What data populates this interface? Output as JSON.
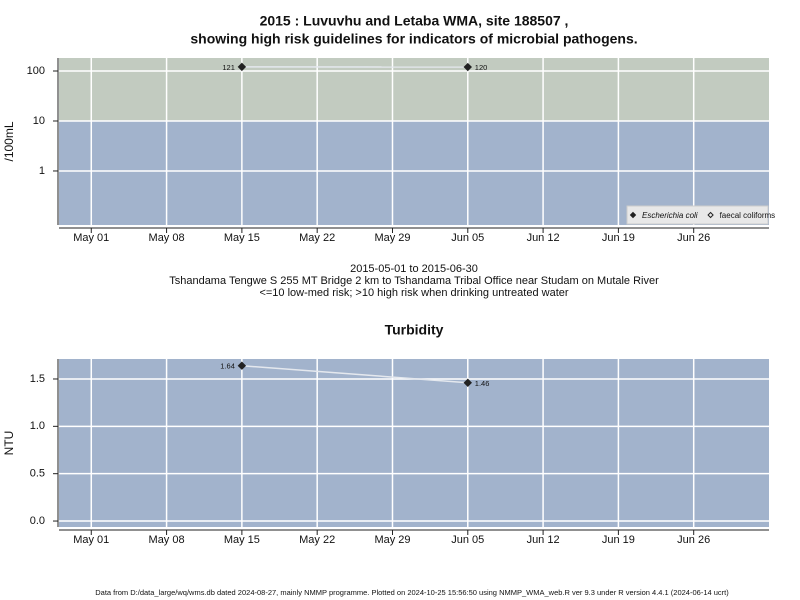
{
  "chart_data": [
    {
      "type": "line",
      "title": [
        "2015 : Luvuvhu and Letaba WMA, site 188507 ,",
        "showing high risk guidelines for indicators of microbial pathogens."
      ],
      "ylabel": "/100mL",
      "caption": [
        "2015-05-01 to 2015-06-30",
        "Tshandama Tengwe S 255 MT Bridge 2 km to Tshandama Tribal Office near Studam on Mutale River",
        "<=10 low-med risk; >10 high risk when drinking untreated water"
      ],
      "x": [
        "2015-05-15",
        "2015-06-05"
      ],
      "series": [
        {
          "name": "Escherichia coli",
          "color": "#222222",
          "line_color": "#e4e8ee",
          "marker": "filled",
          "font_style": "italic",
          "values": [
            121,
            120
          ]
        },
        {
          "name": "faecal coliforms",
          "color": "#222222",
          "line_color": "#e4e8ee",
          "marker": "open",
          "font_style": "normal",
          "values": [
            null,
            null
          ]
        }
      ],
      "xlim": [
        "2015-04-28",
        "2015-07-03"
      ],
      "xticks": [
        {
          "value": "2015-05-01",
          "label": "May 01"
        },
        {
          "value": "2015-05-08",
          "label": "May 08"
        },
        {
          "value": "2015-05-15",
          "label": "May 15"
        },
        {
          "value": "2015-05-22",
          "label": "May 22"
        },
        {
          "value": "2015-05-29",
          "label": "May 29"
        },
        {
          "value": "2015-06-05",
          "label": "Jun 05"
        },
        {
          "value": "2015-06-12",
          "label": "Jun 12"
        },
        {
          "value": "2015-06-19",
          "label": "Jun 19"
        },
        {
          "value": "2015-06-26",
          "label": "Jun 26"
        }
      ],
      "ylim": [
        0.083,
        182
      ],
      "yticks": [
        1,
        10,
        100
      ],
      "log_scale": true,
      "threshold": 10,
      "band_colors": {
        "high": "#c2cbc0",
        "low": "#a2b3cc"
      },
      "grid": true,
      "legend": "bottom-right"
    },
    {
      "type": "line",
      "title": [
        "Turbidity"
      ],
      "ylabel": "NTU",
      "x": [
        "2015-05-15",
        "2015-06-05"
      ],
      "series": [
        {
          "name": "Turbidity",
          "color": "#222222",
          "line_color": "#e4e8ee",
          "marker": "filled",
          "values": [
            1.64,
            1.46
          ]
        }
      ],
      "xlim": [
        "2015-04-28",
        "2015-07-03"
      ],
      "xticks": [
        {
          "value": "2015-05-01",
          "label": "May 01"
        },
        {
          "value": "2015-05-08",
          "label": "May 08"
        },
        {
          "value": "2015-05-15",
          "label": "May 15"
        },
        {
          "value": "2015-05-22",
          "label": "May 22"
        },
        {
          "value": "2015-05-29",
          "label": "May 29"
        },
        {
          "value": "2015-06-05",
          "label": "Jun 05"
        },
        {
          "value": "2015-06-12",
          "label": "Jun 12"
        },
        {
          "value": "2015-06-19",
          "label": "Jun 19"
        },
        {
          "value": "2015-06-26",
          "label": "Jun 26"
        }
      ],
      "ylim": [
        -0.063,
        1.711
      ],
      "yticks": [
        {
          "value": 0,
          "label": "0.0"
        },
        0.5,
        {
          "value": 1,
          "label": "1.0"
        },
        1.5
      ],
      "log_scale": false,
      "band_colors": {
        "low": "#a2b3cc"
      },
      "grid": true
    }
  ],
  "footer": "Data from D:/data_large/wq/wms.db dated 2024-08-27, mainly NMMP programme. Plotted on 2024-10-25 15:56:50 using NMMP_WMA_web.R ver 9.3 under R version 4.4.1 (2024-06-14 ucrt)"
}
